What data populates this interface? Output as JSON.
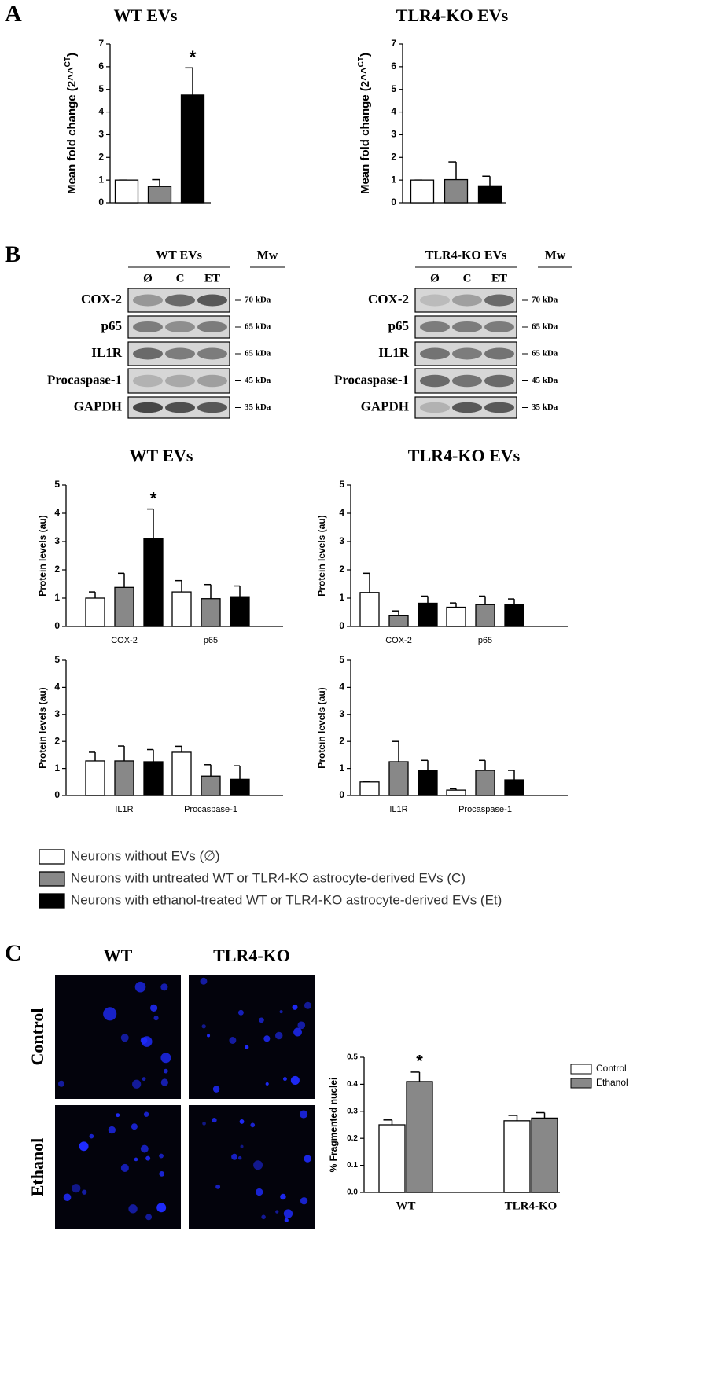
{
  "panel_labels": [
    "A",
    "B",
    "C"
  ],
  "chart_data": [
    {
      "type": "bar",
      "title": "WT EVs",
      "ylabel": "Mean fold change (2^^",
      "ylabel_sup": "CT",
      "ylabel_end": ")",
      "categories": [
        null,
        null,
        null
      ],
      "values": [
        1,
        0.72,
        4.75
      ],
      "errors": [
        0,
        0.3,
        1.2
      ],
      "colors": [
        "#ffffff",
        "#888888",
        "#000000"
      ],
      "ylim": [
        0,
        7
      ],
      "yticks": [
        0,
        1,
        2,
        3,
        4,
        5,
        6,
        7
      ],
      "annotations": [
        "*"
      ]
    },
    {
      "type": "bar",
      "title": "TLR4-KO EVs",
      "ylabel": "Mean fold change (2^^",
      "ylabel_sup": "CT",
      "ylabel_end": ")",
      "categories": [
        null,
        null,
        null
      ],
      "values": [
        1,
        1.02,
        0.75
      ],
      "errors": [
        0,
        0.78,
        0.42
      ],
      "colors": [
        "#ffffff",
        "#888888",
        "#000000"
      ],
      "ylim": [
        0,
        7
      ],
      "yticks": [
        0,
        1,
        2,
        3,
        4,
        5,
        6,
        7
      ]
    },
    {
      "type": "bar",
      "title": "WT EVs",
      "ylabel": "Protein levels (au)",
      "categories": [
        "COX-2",
        "p65"
      ],
      "series": [
        {
          "color": "#ffffff",
          "values": [
            1.0,
            1.22
          ],
          "errors": [
            0.22,
            0.4
          ]
        },
        {
          "color": "#888888",
          "values": [
            1.38,
            0.98
          ],
          "errors": [
            0.5,
            0.5
          ]
        },
        {
          "color": "#000000",
          "values": [
            3.1,
            1.05
          ],
          "errors": [
            1.05,
            0.38
          ]
        }
      ],
      "ylim": [
        0,
        5
      ],
      "yticks": [
        0,
        1,
        2,
        3,
        4,
        5
      ],
      "annotations": [
        "*"
      ]
    },
    {
      "type": "bar",
      "ylabel": "Protein levels (au)",
      "categories": [
        "IL1R",
        "Procaspase-1"
      ],
      "series": [
        {
          "color": "#ffffff",
          "values": [
            1.28,
            1.6
          ],
          "errors": [
            0.32,
            0.22
          ]
        },
        {
          "color": "#888888",
          "values": [
            1.28,
            0.72
          ],
          "errors": [
            0.55,
            0.42
          ]
        },
        {
          "color": "#000000",
          "values": [
            1.25,
            0.6
          ],
          "errors": [
            0.45,
            0.5
          ]
        }
      ],
      "ylim": [
        0,
        5
      ],
      "yticks": [
        0,
        1,
        2,
        3,
        4,
        5
      ]
    },
    {
      "type": "bar",
      "title": "TLR4-KO EVs",
      "ylabel": "Protein levels (au)",
      "categories": [
        "COX-2",
        "p65"
      ],
      "series": [
        {
          "color": "#ffffff",
          "values": [
            1.2,
            0.68
          ],
          "errors": [
            0.68,
            0.15
          ]
        },
        {
          "color": "#888888",
          "values": [
            0.38,
            0.77
          ],
          "errors": [
            0.17,
            0.3
          ]
        },
        {
          "color": "#000000",
          "values": [
            0.82,
            0.77
          ],
          "errors": [
            0.25,
            0.2
          ]
        }
      ],
      "ylim": [
        0,
        5
      ],
      "yticks": [
        0,
        1,
        2,
        3,
        4,
        5
      ]
    },
    {
      "type": "bar",
      "ylabel": "Protein levels (au)",
      "categories": [
        "IL1R",
        "Procaspase-1"
      ],
      "series": [
        {
          "color": "#ffffff",
          "values": [
            0.5,
            0.2
          ],
          "errors": [
            0.03,
            0.05
          ]
        },
        {
          "color": "#888888",
          "values": [
            1.25,
            0.93
          ],
          "errors": [
            0.75,
            0.37
          ]
        },
        {
          "color": "#000000",
          "values": [
            0.93,
            0.58
          ],
          "errors": [
            0.37,
            0.35
          ]
        }
      ],
      "ylim": [
        0,
        5
      ],
      "yticks": [
        0,
        1,
        2,
        3,
        4,
        5
      ]
    },
    {
      "type": "bar",
      "ylabel": "% Fragmented nuclei",
      "categories": [
        "WT",
        "TLR4-KO"
      ],
      "series": [
        {
          "name": "Control",
          "color": "#ffffff",
          "values": [
            0.25,
            0.265
          ],
          "errors": [
            0.018,
            0.02
          ]
        },
        {
          "name": "Ethanol",
          "color": "#888888",
          "values": [
            0.41,
            0.275
          ],
          "errors": [
            0.035,
            0.02
          ]
        }
      ],
      "ylim": [
        0,
        0.5
      ],
      "yticks": [
        {
          "value": 0,
          "label": "0.0"
        },
        0.1,
        0.2,
        0.3,
        0.4,
        0.5
      ],
      "annotations": [
        "*"
      ]
    }
  ],
  "blots": [
    {
      "title": "WT EVs",
      "mw": "Mw",
      "lanes": [
        "Ø",
        "C",
        "ET"
      ],
      "rows": [
        {
          "label": "COX-2",
          "size": "70 kDa"
        },
        {
          "label": "p65",
          "size": "65 kDa"
        },
        {
          "label": "IL1R",
          "size": "65 kDa"
        },
        {
          "label": "Procaspase-1",
          "size": "45 kDa"
        },
        {
          "label": "GAPDH",
          "size": "35 kDa"
        }
      ]
    },
    {
      "title": "TLR4-KO EVs",
      "mw": "Mw",
      "lanes": [
        "Ø",
        "C",
        "ET"
      ],
      "rows": [
        {
          "label": "COX-2",
          "size": "70 kDa"
        },
        {
          "label": "p65",
          "size": "65 kDa"
        },
        {
          "label": "IL1R",
          "size": "65 kDa"
        },
        {
          "label": "Procaspase-1",
          "size": "45 kDa"
        },
        {
          "label": "GAPDH",
          "size": "35 kDa"
        }
      ]
    }
  ],
  "legend": [
    {
      "label": "Neurons without EVs (∅)",
      "color": "#ffffff"
    },
    {
      "label": "Neurons with untreated WT or TLR4-KO astrocyte-derived EVs (C)",
      "color": "#888888"
    },
    {
      "label": "Neurons with ethanol-treated WT or TLR4-KO astrocyte-derived EVs (Et)",
      "color": "#000000"
    }
  ],
  "images": {
    "columns": [
      "WT",
      "TLR4-KO"
    ],
    "rows": [
      "Control",
      "Ethanol"
    ]
  }
}
